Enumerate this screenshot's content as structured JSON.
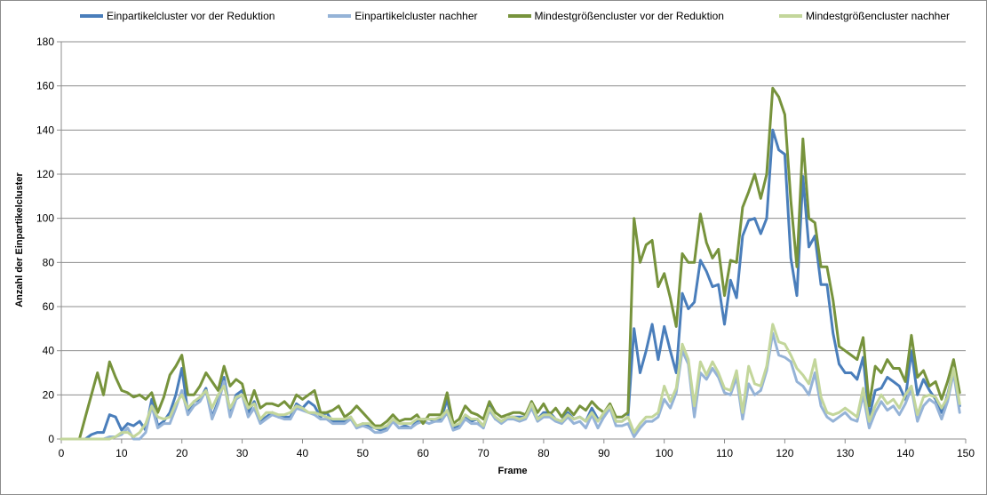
{
  "chart_data": {
    "type": "line",
    "xlabel": "Frame",
    "ylabel": "Anzahl der Einpartikelcluster",
    "xlim": [
      0,
      150
    ],
    "ylim": [
      0,
      180
    ],
    "xticks": [
      0,
      10,
      20,
      30,
      40,
      50,
      60,
      70,
      80,
      90,
      100,
      110,
      120,
      130,
      140,
      150
    ],
    "yticks": [
      0,
      20,
      40,
      60,
      80,
      100,
      120,
      140,
      160,
      180
    ],
    "grid": "horizontal",
    "legend": "top",
    "x": [
      0,
      1,
      2,
      3,
      4,
      5,
      6,
      7,
      8,
      9,
      10,
      11,
      12,
      13,
      14,
      15,
      16,
      17,
      18,
      19,
      20,
      21,
      22,
      23,
      24,
      25,
      26,
      27,
      28,
      29,
      30,
      31,
      32,
      33,
      34,
      35,
      36,
      37,
      38,
      39,
      40,
      41,
      42,
      43,
      44,
      45,
      46,
      47,
      48,
      49,
      50,
      51,
      52,
      53,
      54,
      55,
      56,
      57,
      58,
      59,
      60,
      61,
      62,
      63,
      64,
      65,
      66,
      67,
      68,
      69,
      70,
      71,
      72,
      73,
      74,
      75,
      76,
      77,
      78,
      79,
      80,
      81,
      82,
      83,
      84,
      85,
      86,
      87,
      88,
      89,
      90,
      91,
      92,
      93,
      94,
      95,
      96,
      97,
      98,
      99,
      100,
      101,
      102,
      103,
      104,
      105,
      106,
      107,
      108,
      109,
      110,
      111,
      112,
      113,
      114,
      115,
      116,
      117,
      118,
      119,
      120,
      121,
      122,
      123,
      124,
      125,
      126,
      127,
      128,
      129,
      130,
      131,
      132,
      133,
      134,
      135,
      136,
      137,
      138,
      139,
      140,
      141,
      142,
      143,
      144,
      145,
      146,
      147,
      148,
      149
    ],
    "series": [
      {
        "name": "Einpartikelcluster vor der Reduktion",
        "color": "#4a7ebb",
        "values": [
          0,
          0,
          0,
          0,
          0,
          2,
          3,
          3,
          11,
          10,
          4,
          7,
          6,
          8,
          4,
          18,
          6,
          8,
          12,
          20,
          32,
          12,
          17,
          18,
          23,
          10,
          17,
          28,
          12,
          20,
          22,
          12,
          17,
          8,
          10,
          12,
          10,
          10,
          10,
          16,
          14,
          17,
          15,
          10,
          12,
          8,
          8,
          8,
          10,
          5,
          7,
          6,
          5,
          4,
          5,
          8,
          5,
          6,
          5,
          8,
          9,
          9,
          8,
          9,
          18,
          5,
          6,
          10,
          8,
          9,
          5,
          16,
          9,
          8,
          10,
          10,
          10,
          10,
          17,
          9,
          12,
          12,
          9,
          8,
          12,
          9,
          10,
          8,
          14,
          9,
          10,
          14,
          8,
          8,
          10,
          50,
          30,
          40,
          52,
          36,
          51,
          40,
          30,
          66,
          59,
          62,
          81,
          76,
          69,
          70,
          52,
          72,
          64,
          92,
          99,
          100,
          93,
          100,
          140,
          131,
          129,
          82,
          65,
          119,
          87,
          92,
          70,
          70,
          48,
          34,
          30,
          30,
          27,
          37,
          10,
          22,
          23,
          28,
          26,
          24,
          18,
          40,
          20,
          27,
          22,
          18,
          12,
          20,
          32,
          15
        ]
      },
      {
        "name": "Einpartikelcluster nachher",
        "color": "#95b3d7",
        "values": [
          0,
          0,
          0,
          0,
          0,
          0,
          0,
          0,
          1,
          1,
          2,
          5,
          0,
          0,
          3,
          15,
          5,
          7,
          7,
          14,
          22,
          11,
          15,
          17,
          22,
          9,
          16,
          26,
          10,
          18,
          20,
          10,
          14,
          7,
          9,
          11,
          10,
          9,
          9,
          14,
          13,
          12,
          11,
          9,
          9,
          7,
          7,
          7,
          9,
          5,
          6,
          5,
          3,
          3,
          4,
          8,
          5,
          5,
          5,
          7,
          8,
          7,
          8,
          8,
          12,
          4,
          5,
          9,
          7,
          7,
          5,
          13,
          9,
          7,
          9,
          9,
          8,
          9,
          14,
          8,
          10,
          10,
          8,
          7,
          10,
          7,
          8,
          5,
          11,
          5,
          10,
          14,
          6,
          6,
          7,
          1,
          5,
          8,
          8,
          10,
          18,
          14,
          21,
          40,
          34,
          10,
          30,
          27,
          32,
          28,
          21,
          20,
          28,
          9,
          25,
          20,
          22,
          31,
          48,
          38,
          37,
          35,
          26,
          24,
          20,
          30,
          15,
          10,
          8,
          10,
          12,
          9,
          8,
          20,
          5,
          12,
          17,
          13,
          15,
          11,
          16,
          23,
          8,
          15,
          18,
          16,
          9,
          17,
          30,
          12
        ]
      },
      {
        "name": "Mindestgrößencluster vor der Reduktion",
        "color": "#77933c",
        "values": [
          0,
          0,
          0,
          0,
          10,
          20,
          30,
          20,
          35,
          28,
          22,
          21,
          19,
          20,
          18,
          21,
          12,
          19,
          29,
          33,
          38,
          20,
          20,
          24,
          30,
          26,
          22,
          33,
          24,
          27,
          25,
          14,
          22,
          14,
          16,
          16,
          15,
          17,
          14,
          20,
          18,
          20,
          22,
          12,
          12,
          13,
          15,
          10,
          12,
          15,
          12,
          9,
          6,
          6,
          8,
          11,
          8,
          9,
          9,
          11,
          7,
          11,
          11,
          11,
          21,
          7,
          9,
          15,
          12,
          11,
          9,
          17,
          12,
          10,
          11,
          12,
          12,
          11,
          17,
          12,
          16,
          11,
          14,
          10,
          14,
          11,
          15,
          13,
          17,
          14,
          12,
          16,
          10,
          10,
          12,
          100,
          80,
          88,
          90,
          69,
          75,
          64,
          51,
          84,
          80,
          80,
          102,
          89,
          82,
          86,
          65,
          81,
          80,
          105,
          112,
          120,
          109,
          120,
          159,
          155,
          147,
          108,
          78,
          136,
          100,
          98,
          78,
          78,
          63,
          42,
          40,
          38,
          36,
          46,
          15,
          33,
          30,
          36,
          32,
          32,
          26,
          47,
          28,
          31,
          24,
          26,
          18,
          26,
          36,
          21
        ]
      },
      {
        "name": "Mindestgrößencluster nachher",
        "color": "#c3d69b",
        "values": [
          0,
          0,
          0,
          0,
          0,
          0,
          0,
          0,
          0,
          1,
          3,
          3,
          1,
          3,
          7,
          15,
          10,
          9,
          10,
          16,
          20,
          14,
          17,
          19,
          22,
          14,
          20,
          24,
          14,
          19,
          20,
          14,
          16,
          9,
          12,
          12,
          11,
          11,
          12,
          15,
          14,
          12,
          12,
          11,
          10,
          9,
          9,
          9,
          10,
          6,
          7,
          7,
          5,
          5,
          6,
          9,
          7,
          7,
          7,
          9,
          9,
          9,
          9,
          10,
          13,
          6,
          7,
          11,
          9,
          9,
          6,
          14,
          10,
          8,
          10,
          10,
          9,
          10,
          16,
          9,
          11,
          11,
          9,
          8,
          11,
          9,
          10,
          8,
          12,
          8,
          12,
          15,
          8,
          8,
          10,
          3,
          7,
          10,
          10,
          12,
          24,
          17,
          23,
          43,
          36,
          15,
          35,
          29,
          35,
          30,
          23,
          22,
          31,
          12,
          33,
          25,
          24,
          33,
          52,
          44,
          43,
          38,
          32,
          29,
          25,
          36,
          19,
          12,
          11,
          12,
          14,
          12,
          10,
          23,
          8,
          15,
          20,
          16,
          18,
          14,
          20,
          24,
          11,
          19,
          20,
          19,
          14,
          19,
          32,
          16
        ]
      }
    ]
  }
}
